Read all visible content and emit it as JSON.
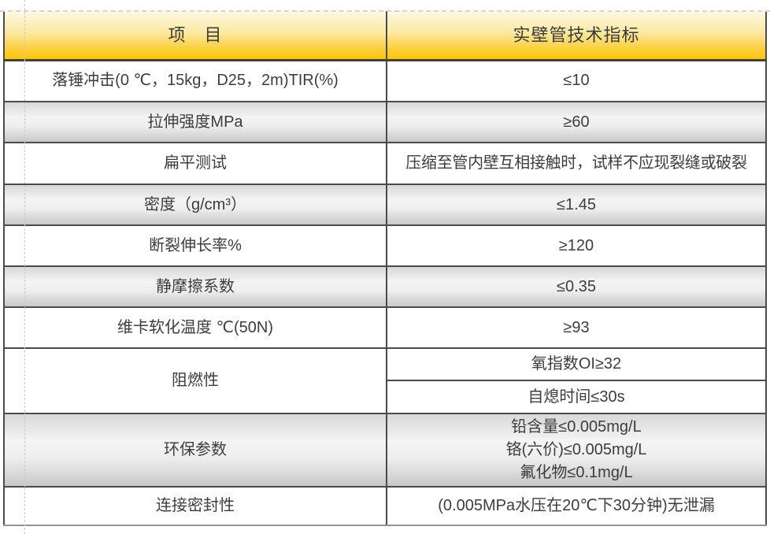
{
  "table": {
    "header": {
      "item_col": "项　目",
      "value_col": "实壁管技术指标"
    },
    "rows": [
      {
        "item": "落锤冲击(0 ℃，15kg，D25，2m)TIR(%)",
        "value": "≤10"
      },
      {
        "item": "拉伸强度MPa",
        "value": "≥60"
      },
      {
        "item": "扁平测试",
        "value": "压缩至管内壁互相接触时，试样不应现裂缝或破裂"
      },
      {
        "item": "密度（g/cm³）",
        "value": "≤1.45"
      },
      {
        "item": "断裂伸长率%",
        "value": "≥120"
      },
      {
        "item": "静摩擦系数",
        "value": "≤0.35"
      },
      {
        "item": "维卡软化温度 ℃(50N)",
        "value": "≥93"
      },
      {
        "item": "阻燃性",
        "values": [
          "氧指数OI≥32",
          "自熄时间≤30s"
        ]
      },
      {
        "item": "环保参数",
        "lines": [
          "铅含量≤0.005mg/L",
          "铬(六价)≤0.005mg/L",
          "氟化物≤0.1mg/L"
        ]
      },
      {
        "item": "连接密封性",
        "value": "(0.005MPa水压在20℃下30分钟)无泄漏"
      }
    ],
    "colors": {
      "header_gold_top": "#fdf9e6",
      "header_gold_bottom": "#fdc609",
      "border_dark": "#4b4b4b",
      "border_bottom_light": "#949494",
      "row_gray_top": "#d8d8d8",
      "row_gray_bottom": "#c8c8c8",
      "text": "#3d3d3d",
      "guide_dash": "#c7ccd4"
    }
  }
}
